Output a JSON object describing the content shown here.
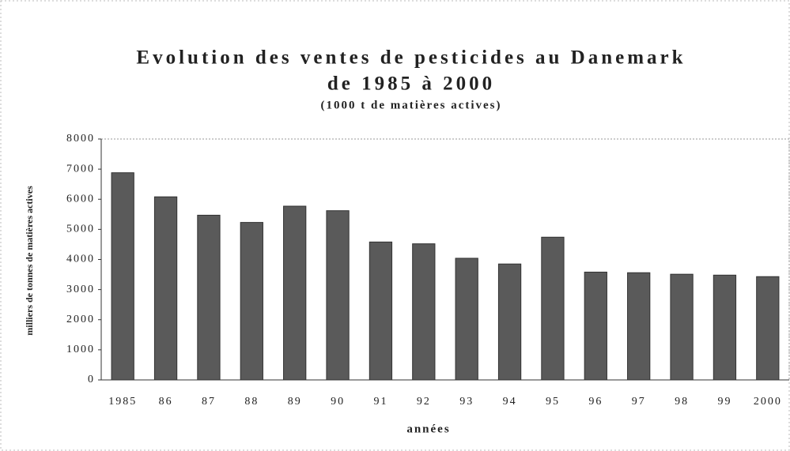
{
  "chart_data": {
    "type": "bar",
    "title": [
      "Evolution des ventes de pesticides au Danemark",
      "de 1985 à 2000"
    ],
    "subtitle": "(1000 t de matières actives)",
    "y_label": "milliers de tonnes de matières actives",
    "x_label": "années",
    "categories": [
      "1985",
      "86",
      "87",
      "88",
      "89",
      "90",
      "91",
      "92",
      "93",
      "94",
      "95",
      "96",
      "97",
      "98",
      "99",
      "2000"
    ],
    "values": [
      6880,
      6080,
      5470,
      5230,
      5770,
      5620,
      4580,
      4520,
      4040,
      3850,
      4740,
      3580,
      3560,
      3510,
      3480,
      3430
    ],
    "color": "#5a5a5a",
    "ylim": [
      0,
      8000
    ],
    "yticks": [
      0,
      1000,
      2000,
      3000,
      4000,
      5000,
      6000,
      7000,
      8000
    ],
    "grid": false
  }
}
